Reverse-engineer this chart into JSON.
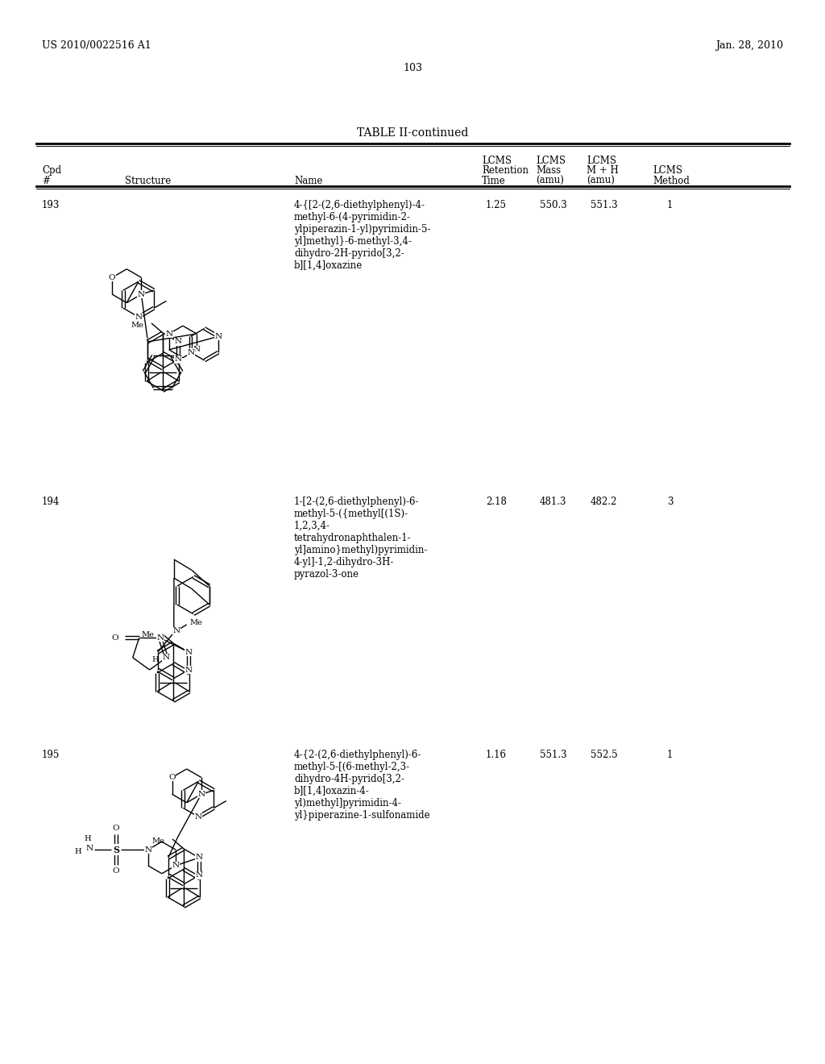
{
  "bg_color": "#ffffff",
  "header_left": "US 2010/0022516 A1",
  "header_right": "Jan. 28, 2010",
  "page_number": "103",
  "table_title": "TABLE II-continued",
  "rows": [
    {
      "cpd": "193",
      "name": "4-{[2-(2,6-diethylphenyl)-4-\nmethyl-6-(4-pyrimidin-2-\nylpiperazin-1-yl)pyrimidin-5-\nyl]methyl}-6-methyl-3,4-\ndihydro-2H-pyrido[3,2-\nb][1,4]oxazine",
      "lcms_ret": "1.25",
      "lcms_mass": "550.3",
      "lcms_mh": "551.3",
      "lcms_method": "1"
    },
    {
      "cpd": "194",
      "name": "1-[2-(2,6-diethylphenyl)-6-\nmethyl-5-({methyl[(1S)-\n1,2,3,4-\ntetrahydronaphthalen-1-\nyl]amino}methyl)pyrimidin-\n4-yl]-1,2-dihydro-3H-\npyrazol-3-one",
      "lcms_ret": "2.18",
      "lcms_mass": "481.3",
      "lcms_mh": "482.2",
      "lcms_method": "3"
    },
    {
      "cpd": "195",
      "name": "4-{2-(2,6-diethylphenyl)-6-\nmethyl-5-[(6-methyl-2,3-\ndihydro-4H-pyrido[3,2-\nb][1,4]oxazin-4-\nyl)methyl]pyrimidin-4-\nyl}piperazine-1-sulfonamide",
      "lcms_ret": "1.16",
      "lcms_mass": "551.3",
      "lcms_mh": "552.5",
      "lcms_method": "1"
    }
  ],
  "font_size_header": 8.5,
  "font_size_body": 8.5,
  "font_size_title": 10,
  "font_size_page": 9
}
